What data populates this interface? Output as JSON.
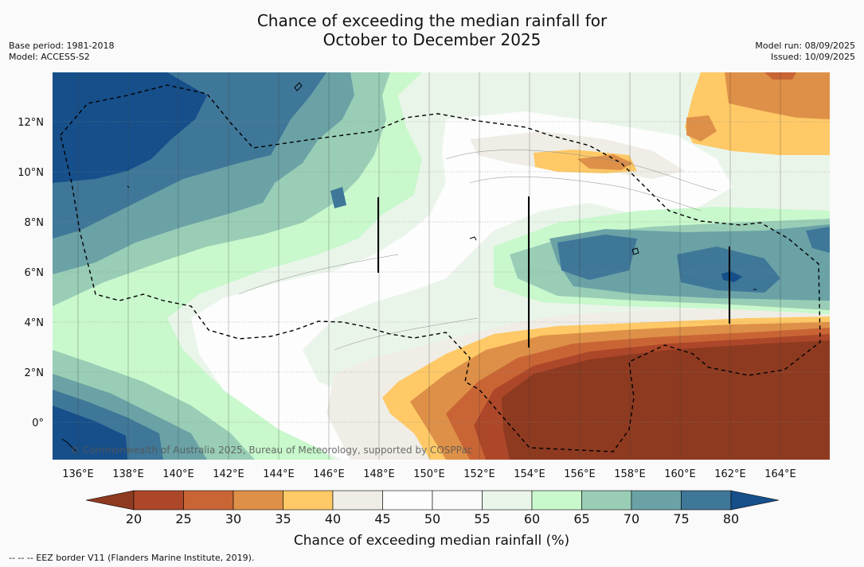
{
  "header": {
    "title": "Chance of exceeding the median rainfall for\nOctober to December 2025",
    "base_period": "Base period: 1981-2018",
    "model": "Model: ACCESS-S2",
    "model_run": "Model run: 08/09/2025",
    "issued": "Issued: 10/09/2025"
  },
  "map": {
    "lon_ticks": [
      "136°E",
      "138°E",
      "140°E",
      "142°E",
      "144°E",
      "146°E",
      "148°E",
      "150°E",
      "152°E",
      "154°E",
      "156°E",
      "158°E",
      "160°E",
      "162°E",
      "164°E"
    ],
    "lat_ticks": [
      "12°N",
      "10°N",
      "8°N",
      "6°N",
      "4°N",
      "2°N",
      "0°"
    ],
    "copyright": "© Commonwealth of Australia 2025, Bureau of Meteorology, supported by COSPPac"
  },
  "colorbar": {
    "ticks": [
      "20",
      "25",
      "30",
      "35",
      "40",
      "45",
      "50",
      "55",
      "60",
      "65",
      "70",
      "75",
      "80"
    ],
    "label": "Chance of exceeding median rainfall (%)",
    "colors": [
      "#8e3a20",
      "#ad4729",
      "#c96535",
      "#de9048",
      "#fec966",
      "#efede6",
      "#fdfdfd",
      "#fafafa",
      "#eaf5ea",
      "#c8f8cc",
      "#99cdb6",
      "#6aa2a6",
      "#3f7799",
      "#164f8a"
    ]
  },
  "footnote": "--  --  -- EEZ border V11 (Flanders Marine Institute, 2019)."
}
